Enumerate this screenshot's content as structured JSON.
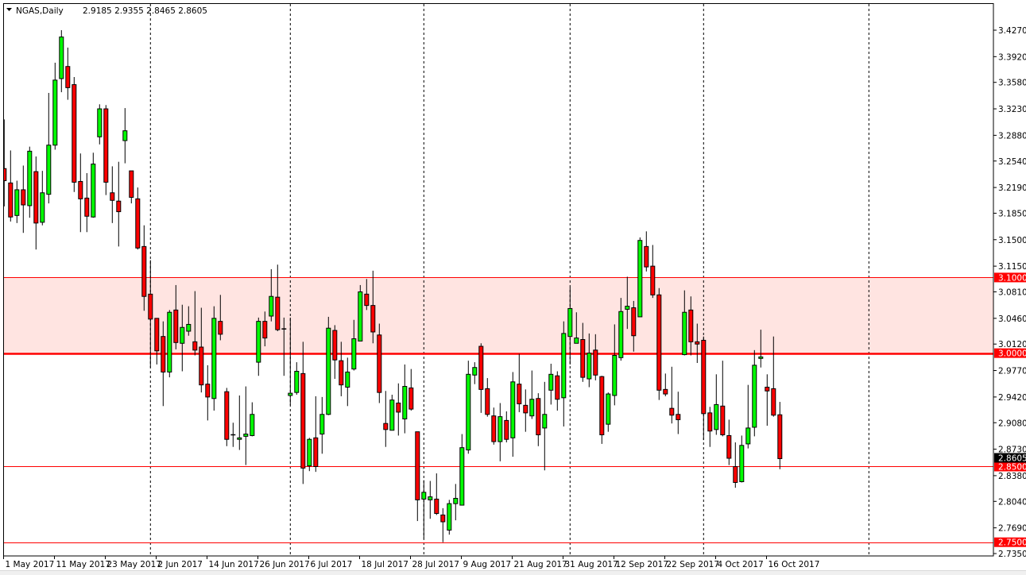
{
  "header": {
    "symbol_timeframe": "NGAS,Daily",
    "ohlc": "2.9185 2.9355 2.8465 2.8605",
    "menu_icon": "triangle-down-icon"
  },
  "chart_data": {
    "type": "candlestick",
    "title": "NGAS,Daily",
    "ylim": [
      2.735,
      3.427
    ],
    "grid": false,
    "colors": {
      "bull": "#00ff00",
      "bear": "#ff0000",
      "wick": "#000000",
      "zone": "#ffe4e1",
      "level": "#ff0000",
      "current_price_bg": "#000000"
    },
    "y_ticks": [
      "3.4270",
      "3.3920",
      "3.3580",
      "3.3230",
      "3.2880",
      "3.2540",
      "3.2190",
      "3.1850",
      "3.1500",
      "3.1150",
      "3.0810",
      "3.0460",
      "3.0120",
      "2.9770",
      "2.9420",
      "2.9080",
      "2.8730",
      "2.8380",
      "2.8040",
      "2.7690",
      "2.7350"
    ],
    "x_ticks": [
      {
        "bar": 0,
        "label": "1 May 2017"
      },
      {
        "bar": 8,
        "label": "11 May 2017"
      },
      {
        "bar": 16,
        "label": "23 May 2017"
      },
      {
        "bar": 24,
        "label": "2 Jun 2017"
      },
      {
        "bar": 32,
        "label": "14 Jun 2017"
      },
      {
        "bar": 40,
        "label": "26 Jun 2017"
      },
      {
        "bar": 48,
        "label": "6 Jul 2017"
      },
      {
        "bar": 56,
        "label": "18 Jul 2017"
      },
      {
        "bar": 64,
        "label": "28 Jul 2017"
      },
      {
        "bar": 72,
        "label": "9 Aug 2017"
      },
      {
        "bar": 80,
        "label": "21 Aug 2017"
      },
      {
        "bar": 88,
        "label": "31 Aug 2017"
      },
      {
        "bar": 96,
        "label": "12 Sep 2017"
      },
      {
        "bar": 104,
        "label": "22 Sep 2017"
      },
      {
        "bar": 112,
        "label": "4 Oct 2017"
      },
      {
        "bar": 120,
        "label": "16 Oct 2017"
      }
    ],
    "period_separator_bars": [
      23,
      45,
      66,
      89,
      110,
      136
    ],
    "zone": {
      "from": 3.0,
      "to": 3.1
    },
    "levels": [
      {
        "price": 3.1,
        "label": "3.1000",
        "thick": false
      },
      {
        "price": 3.0,
        "label": "3.0000",
        "thick": true
      },
      {
        "price": 2.85,
        "label": "2.8500",
        "thick": false
      },
      {
        "price": 2.75,
        "label": "2.7500",
        "thick": false
      }
    ],
    "current_price": {
      "price": 2.8605,
      "label": "2.8605"
    },
    "ohlc_fields": [
      "open",
      "high",
      "low",
      "close"
    ],
    "candles": [
      [
        3.244,
        3.309,
        3.194,
        3.228
      ],
      [
        3.225,
        3.268,
        3.174,
        3.18
      ],
      [
        3.182,
        3.228,
        3.172,
        3.216
      ],
      [
        3.216,
        3.248,
        3.159,
        3.196
      ],
      [
        3.195,
        3.273,
        3.179,
        3.267
      ],
      [
        3.24,
        3.26,
        3.137,
        3.172
      ],
      [
        3.173,
        3.241,
        3.169,
        3.212
      ],
      [
        3.21,
        3.344,
        3.198,
        3.275
      ],
      [
        3.275,
        3.384,
        3.269,
        3.361
      ],
      [
        3.363,
        3.427,
        3.345,
        3.418
      ],
      [
        3.379,
        3.404,
        3.335,
        3.351
      ],
      [
        3.355,
        3.365,
        3.213,
        3.226
      ],
      [
        3.227,
        3.264,
        3.16,
        3.204
      ],
      [
        3.205,
        3.238,
        3.16,
        3.181
      ],
      [
        3.18,
        3.265,
        3.179,
        3.25
      ],
      [
        3.286,
        3.329,
        3.276,
        3.323
      ],
      [
        3.323,
        3.328,
        3.209,
        3.226
      ],
      [
        3.212,
        3.247,
        3.172,
        3.202
      ],
      [
        3.201,
        3.253,
        3.141,
        3.187
      ],
      [
        3.281,
        3.324,
        3.251,
        3.294
      ],
      [
        3.241,
        3.241,
        3.198,
        3.206
      ],
      [
        3.204,
        3.219,
        3.137,
        3.139
      ],
      [
        3.141,
        3.169,
        3.056,
        3.075
      ],
      [
        3.078,
        3.123,
        2.981,
        3.045
      ],
      [
        3.046,
        3.046,
        2.985,
        3.003
      ],
      [
        3.022,
        3.042,
        2.93,
        2.975
      ],
      [
        2.975,
        3.057,
        2.968,
        3.054
      ],
      [
        3.057,
        3.09,
        3.005,
        3.014
      ],
      [
        3.013,
        3.064,
        2.976,
        3.034
      ],
      [
        3.029,
        3.062,
        3.023,
        3.038
      ],
      [
        3.015,
        3.082,
        2.997,
        3.004
      ],
      [
        3.008,
        3.06,
        2.948,
        2.958
      ],
      [
        2.959,
        2.984,
        2.911,
        2.942
      ],
      [
        2.94,
        3.062,
        2.924,
        3.046
      ],
      [
        3.042,
        3.077,
        3.017,
        3.025
      ],
      [
        2.949,
        2.954,
        2.877,
        2.886
      ],
      [
        2.892,
        2.908,
        2.876,
        2.891
      ],
      [
        2.886,
        2.944,
        2.872,
        2.888
      ],
      [
        2.89,
        2.956,
        2.852,
        2.893
      ],
      [
        2.891,
        2.935,
        2.89,
        2.919
      ],
      [
        2.988,
        3.047,
        2.97,
        3.042
      ],
      [
        3.042,
        3.055,
        3.009,
        3.02
      ],
      [
        3.049,
        3.111,
        3.042,
        3.075
      ],
      [
        3.074,
        3.117,
        3.029,
        3.031
      ],
      [
        3.032,
        3.047,
        2.97,
        3.031
      ],
      [
        2.944,
        3.047,
        2.931,
        2.947
      ],
      [
        2.948,
        2.988,
        2.945,
        2.976
      ],
      [
        2.973,
        3.015,
        2.827,
        2.848
      ],
      [
        2.851,
        2.888,
        2.844,
        2.886
      ],
      [
        2.888,
        2.943,
        2.843,
        2.85
      ],
      [
        2.893,
        2.942,
        2.867,
        2.919
      ],
      [
        2.919,
        3.048,
        2.918,
        3.033
      ],
      [
        3.03,
        3.037,
        2.966,
        2.991
      ],
      [
        2.99,
        3.015,
        2.943,
        2.958
      ],
      [
        2.955,
        2.994,
        2.93,
        2.975
      ],
      [
        2.979,
        3.044,
        2.977,
        3.019
      ],
      [
        3.016,
        3.09,
        3.016,
        3.081
      ],
      [
        3.078,
        3.098,
        3.057,
        3.063
      ],
      [
        3.063,
        3.109,
        3.013,
        3.028
      ],
      [
        3.024,
        3.039,
        2.934,
        2.948
      ],
      [
        2.907,
        2.95,
        2.876,
        2.899
      ],
      [
        2.898,
        2.945,
        2.898,
        2.938
      ],
      [
        2.934,
        2.96,
        2.891,
        2.922
      ],
      [
        2.913,
        2.985,
        2.894,
        2.956
      ],
      [
        2.954,
        2.979,
        2.924,
        2.926
      ],
      [
        2.896,
        2.896,
        2.778,
        2.806
      ],
      [
        2.807,
        2.832,
        2.755,
        2.816
      ],
      [
        2.806,
        2.831,
        2.781,
        2.81
      ],
      [
        2.807,
        2.841,
        2.786,
        2.788
      ],
      [
        2.786,
        2.795,
        2.75,
        2.777
      ],
      [
        2.766,
        2.806,
        2.76,
        2.801
      ],
      [
        2.801,
        2.827,
        2.779,
        2.808
      ],
      [
        2.799,
        2.893,
        2.799,
        2.875
      ],
      [
        2.872,
        2.99,
        2.867,
        2.972
      ],
      [
        2.971,
        2.988,
        2.959,
        2.981
      ],
      [
        3.009,
        3.013,
        2.921,
        2.952
      ],
      [
        2.953,
        2.967,
        2.916,
        2.919
      ],
      [
        2.917,
        2.928,
        2.879,
        2.883
      ],
      [
        2.883,
        2.934,
        2.857,
        2.916
      ],
      [
        2.911,
        2.923,
        2.882,
        2.886
      ],
      [
        2.888,
        2.975,
        2.863,
        2.962
      ],
      [
        2.959,
        2.999,
        2.922,
        2.933
      ],
      [
        2.931,
        2.952,
        2.896,
        2.921
      ],
      [
        2.917,
        2.977,
        2.913,
        2.939
      ],
      [
        2.94,
        2.947,
        2.877,
        2.892
      ],
      [
        2.901,
        2.962,
        2.845,
        2.919
      ],
      [
        2.951,
        2.986,
        2.932,
        2.972
      ],
      [
        2.97,
        2.976,
        2.924,
        2.939
      ],
      [
        2.941,
        3.042,
        2.903,
        3.026
      ],
      [
        3.022,
        3.087,
        2.985,
        3.059
      ],
      [
        3.013,
        3.054,
        3.013,
        3.02
      ],
      [
        3.018,
        3.04,
        2.962,
        2.968
      ],
      [
        2.966,
        3.026,
        2.955,
        3.0
      ],
      [
        3.004,
        3.025,
        2.964,
        2.971
      ],
      [
        2.969,
        2.97,
        2.88,
        2.892
      ],
      [
        2.906,
        2.948,
        2.896,
        2.946
      ],
      [
        2.944,
        3.038,
        2.931,
        2.997
      ],
      [
        2.994,
        3.073,
        2.99,
        3.055
      ],
      [
        3.058,
        3.101,
        3.032,
        3.062
      ],
      [
        3.06,
        3.069,
        3.002,
        3.023
      ],
      [
        3.048,
        3.153,
        3.048,
        3.149
      ],
      [
        3.141,
        3.161,
        3.108,
        3.114
      ],
      [
        3.115,
        3.143,
        3.073,
        3.077
      ],
      [
        3.077,
        3.086,
        2.938,
        2.951
      ],
      [
        2.952,
        2.973,
        2.943,
        2.946
      ],
      [
        2.927,
        2.982,
        2.907,
        2.918
      ],
      [
        2.919,
        2.949,
        2.893,
        2.912
      ],
      [
        2.998,
        3.083,
        2.997,
        3.054
      ],
      [
        3.057,
        3.075,
        2.997,
        3.015
      ],
      [
        3.015,
        3.039,
        2.987,
        3.012
      ],
      [
        3.017,
        3.022,
        2.885,
        2.92
      ],
      [
        2.921,
        2.929,
        2.876,
        2.897
      ],
      [
        2.899,
        2.972,
        2.892,
        2.932
      ],
      [
        2.93,
        2.99,
        2.89,
        2.892
      ],
      [
        2.891,
        2.912,
        2.852,
        2.861
      ],
      [
        2.85,
        2.882,
        2.822,
        2.829
      ],
      [
        2.83,
        2.891,
        2.829,
        2.878
      ],
      [
        2.88,
        2.958,
        2.874,
        2.901
      ],
      [
        2.902,
        3.004,
        2.89,
        2.984
      ],
      [
        2.993,
        3.031,
        2.981,
        2.995
      ],
      [
        2.955,
        2.972,
        2.904,
        2.95
      ],
      [
        2.953,
        3.022,
        2.916,
        2.918
      ],
      [
        2.9185,
        2.9355,
        2.8465,
        2.8605
      ]
    ]
  }
}
